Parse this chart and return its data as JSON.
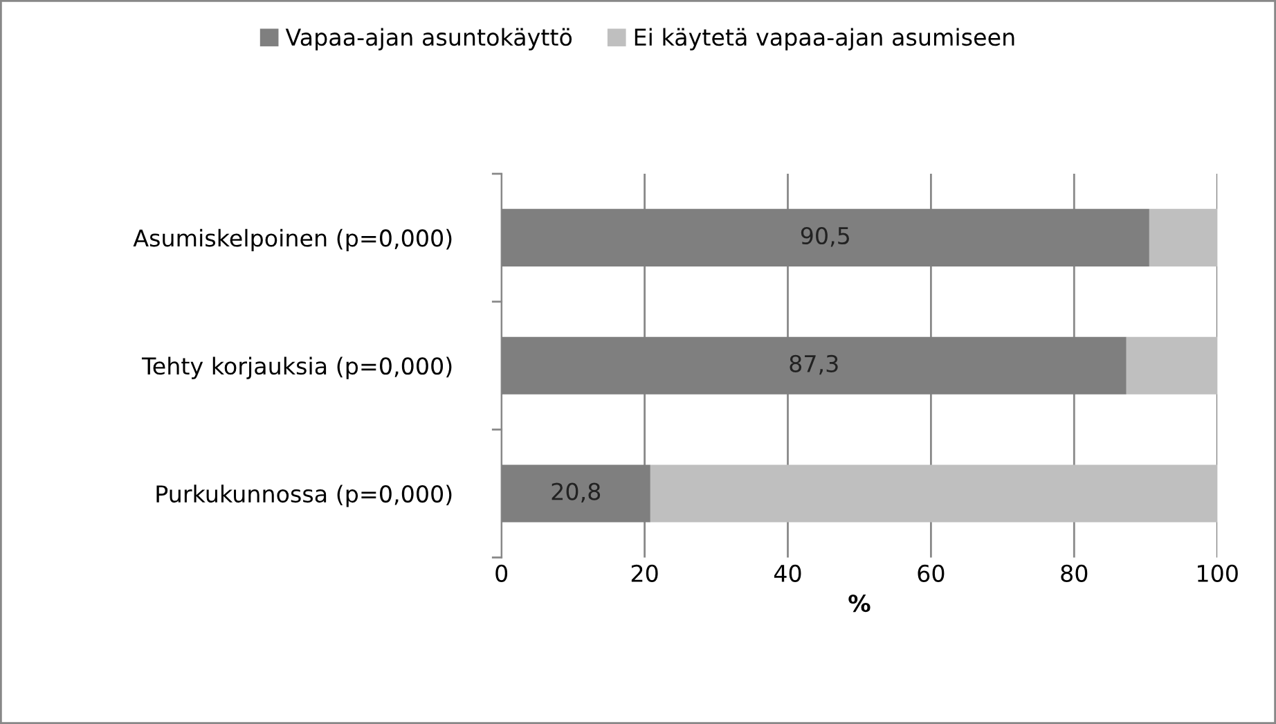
{
  "chart_data": {
    "type": "bar",
    "orientation": "horizontal",
    "stacked": true,
    "xlabel": "%",
    "categories": [
      "Asumiskelpoinen (p=0,000)",
      "Tehty korjauksia (p=0,000)",
      "Purkukunnossa (p=0,000)"
    ],
    "series": [
      {
        "name": "Vapaa-ajan asuntokäyttö",
        "color": "#7f7f7f",
        "values": [
          90.5,
          87.3,
          20.8
        ],
        "value_labels": [
          "90,5",
          "87,3",
          "20,8"
        ]
      },
      {
        "name": "Ei käytetä vapaa-ajan asumiseen",
        "color": "#bfbfbf",
        "values": [
          9.5,
          12.7,
          79.2
        ]
      }
    ],
    "xlim": [
      0,
      100
    ],
    "xticks": [
      0,
      20,
      40,
      60,
      80,
      100
    ],
    "grid": "x",
    "legend": "top"
  }
}
